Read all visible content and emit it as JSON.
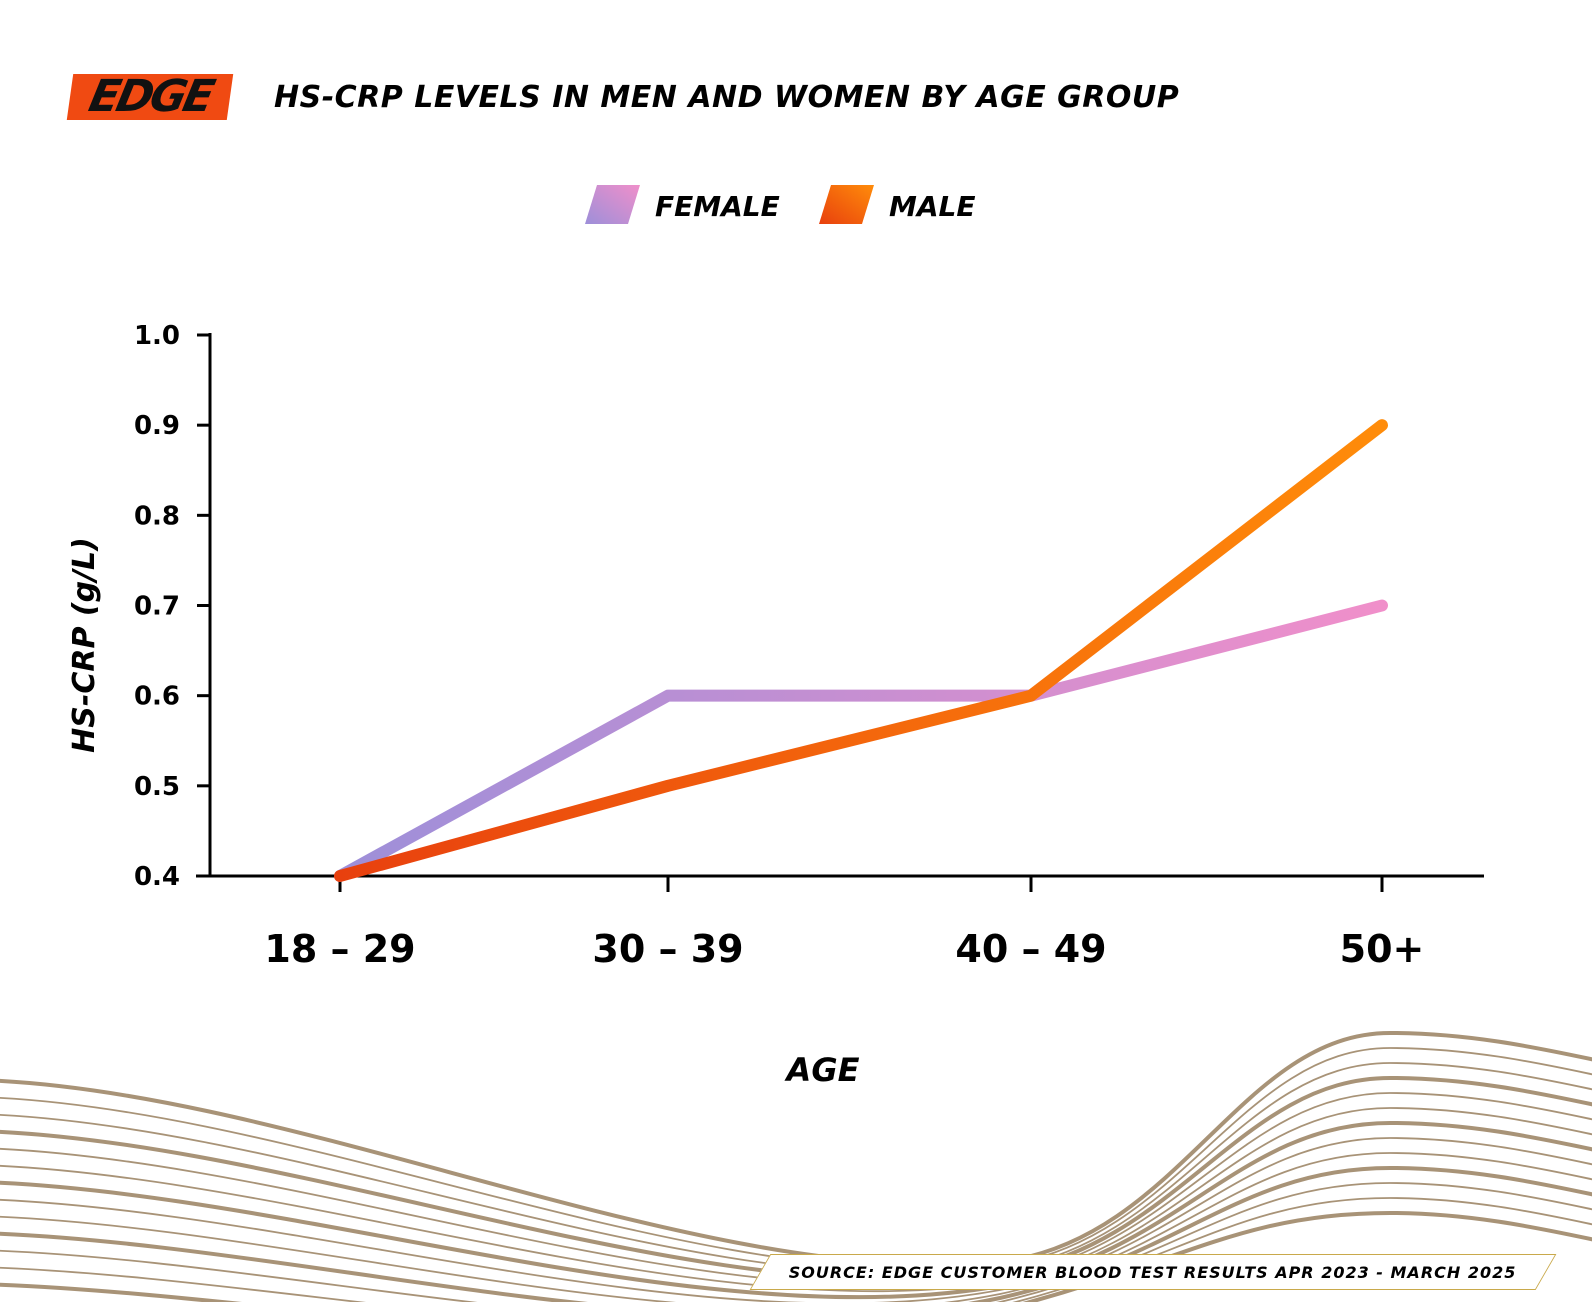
{
  "brand": {
    "logo_text": "EDGE"
  },
  "header": {
    "title": "HS-CRP LEVELS IN MEN AND WOMEN BY AGE GROUP"
  },
  "footer": {
    "source": "SOURCE: EDGE CUSTOMER BLOOD TEST RESULTS APR 2023 - MARCH 2025"
  },
  "colors": {
    "female_start": "#9d8fd9",
    "female_end": "#f08fca",
    "male_start": "#e8400e",
    "male_end": "#ff8c0a",
    "wave": "#a38d70",
    "logo_bg": "#f04a12"
  },
  "chart_data": {
    "type": "line",
    "categories": [
      "18 – 29",
      "30 – 39",
      "40 – 49",
      "50+"
    ],
    "series": [
      {
        "name": "FEMALE",
        "values": [
          0.4,
          0.6,
          0.6,
          0.7
        ]
      },
      {
        "name": "MALE",
        "values": [
          0.4,
          0.5,
          0.6,
          0.9
        ]
      }
    ],
    "title": "HS-CRP LEVELS IN MEN AND WOMEN BY AGE GROUP",
    "xlabel": "AGE",
    "ylabel": "HS-CRP (g/L)",
    "ylim": [
      0.4,
      1.0
    ],
    "yticks": [
      "0.4",
      "0.5",
      "0.6",
      "0.7",
      "0.8",
      "0.9",
      "1.0"
    ],
    "grid": false,
    "legend_position": "top-center"
  }
}
